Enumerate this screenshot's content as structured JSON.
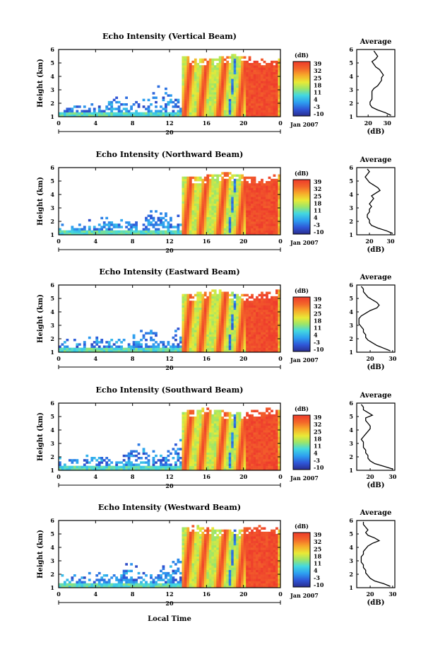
{
  "chart_data": {
    "type": "heatmap",
    "colorbar": {
      "unit_label": "(dB)",
      "ticks": [
        "39",
        "32",
        "25",
        "18",
        "11",
        "4",
        "-3",
        "-10"
      ],
      "range": [
        -10,
        39
      ]
    },
    "x_ticks": [
      "0",
      "4",
      "8",
      "12",
      "16",
      "20",
      "0"
    ],
    "date_tick": "20",
    "date_label": "Jan 2007",
    "y_ticks": [
      "1",
      "2",
      "3",
      "4",
      "5",
      "6"
    ],
    "ylim": [
      1,
      6
    ],
    "xlim_hours": [
      0,
      24
    ],
    "ylabel": "Height (km)",
    "xlabel": "Local Time",
    "profile": {
      "title": "Average",
      "xlabel": "(dB)"
    },
    "panels": [
      {
        "title": "Echo Intensity (Vertical Beam)",
        "profile_xticks": [
          "20",
          "30"
        ],
        "profile_xlim": [
          14,
          34
        ],
        "profile": {
          "height": [
            1.1,
            1.3,
            1.5,
            1.7,
            1.9,
            2.1,
            2.3,
            2.5,
            2.7,
            2.9,
            3.1,
            3.3,
            3.5,
            3.7,
            3.9,
            4.1,
            4.3,
            4.5,
            4.7,
            4.9,
            5.1,
            5.3,
            5.5,
            5.7,
            5.9
          ],
          "db": [
            32,
            29,
            25,
            22,
            21,
            21,
            22,
            22,
            22,
            22,
            23,
            25,
            26,
            27,
            27,
            28,
            27,
            26,
            24,
            23,
            22,
            24,
            25,
            24,
            23
          ]
        }
      },
      {
        "title": "Echo Intensity (Northward Beam)",
        "profile_xticks": [
          "20",
          "30"
        ],
        "profile_xlim": [
          14,
          32
        ],
        "profile": {
          "height": [
            1.1,
            1.3,
            1.5,
            1.7,
            1.9,
            2.1,
            2.3,
            2.5,
            2.7,
            2.9,
            3.1,
            3.3,
            3.5,
            3.7,
            3.9,
            4.1,
            4.3,
            4.5,
            4.7,
            4.9,
            5.1,
            5.3,
            5.5,
            5.7,
            5.9
          ],
          "db": [
            31,
            28,
            24,
            21,
            20,
            20,
            19,
            19,
            20,
            20,
            21,
            20,
            21,
            22,
            21,
            23,
            25,
            24,
            22,
            20,
            19,
            18,
            19,
            20,
            19
          ]
        }
      },
      {
        "title": "Echo Intensity (Eastward Beam)",
        "profile_xticks": [
          "20",
          "30"
        ],
        "profile_xlim": [
          14,
          31
        ],
        "profile": {
          "height": [
            1.1,
            1.3,
            1.5,
            1.7,
            1.9,
            2.1,
            2.3,
            2.5,
            2.7,
            2.9,
            3.1,
            3.3,
            3.5,
            3.7,
            3.9,
            4.1,
            4.3,
            4.5,
            4.7,
            4.9,
            5.1,
            5.3,
            5.5,
            5.7,
            5.9
          ],
          "db": [
            29,
            26,
            23,
            21,
            19,
            18,
            18,
            17,
            17,
            16,
            15,
            15,
            15,
            16,
            18,
            20,
            23,
            24,
            23,
            21,
            19,
            18,
            17,
            17,
            16
          ]
        }
      },
      {
        "title": "Echo Intensity (Southward Beam)",
        "profile_xticks": [
          "20",
          "30"
        ],
        "profile_xlim": [
          14,
          31
        ],
        "profile": {
          "height": [
            1.1,
            1.3,
            1.5,
            1.7,
            1.9,
            2.1,
            2.3,
            2.5,
            2.7,
            2.9,
            3.1,
            3.3,
            3.5,
            3.7,
            3.9,
            4.1,
            4.3,
            4.5,
            4.7,
            4.9,
            5.1,
            5.3,
            5.5,
            5.7,
            5.9
          ],
          "db": [
            30,
            26,
            22,
            20,
            19,
            19,
            18,
            18,
            17,
            17,
            17,
            16,
            17,
            18,
            19,
            20,
            20,
            19,
            18,
            18,
            21,
            19,
            17,
            17,
            16
          ]
        }
      },
      {
        "title": "Echo Intensity (Westward Beam)",
        "profile_xticks": [
          "20",
          "30"
        ],
        "profile_xlim": [
          14,
          31
        ],
        "profile": {
          "height": [
            1.1,
            1.3,
            1.5,
            1.7,
            1.9,
            2.1,
            2.3,
            2.5,
            2.7,
            2.9,
            3.1,
            3.3,
            3.5,
            3.7,
            3.9,
            4.1,
            4.3,
            4.5,
            4.7,
            4.9,
            5.1,
            5.3,
            5.5,
            5.7,
            5.9
          ],
          "db": [
            29,
            26,
            22,
            20,
            19,
            18,
            18,
            17,
            17,
            16,
            16,
            16,
            17,
            17,
            18,
            19,
            21,
            24,
            22,
            19,
            18,
            19,
            18,
            17,
            17
          ]
        }
      }
    ]
  }
}
